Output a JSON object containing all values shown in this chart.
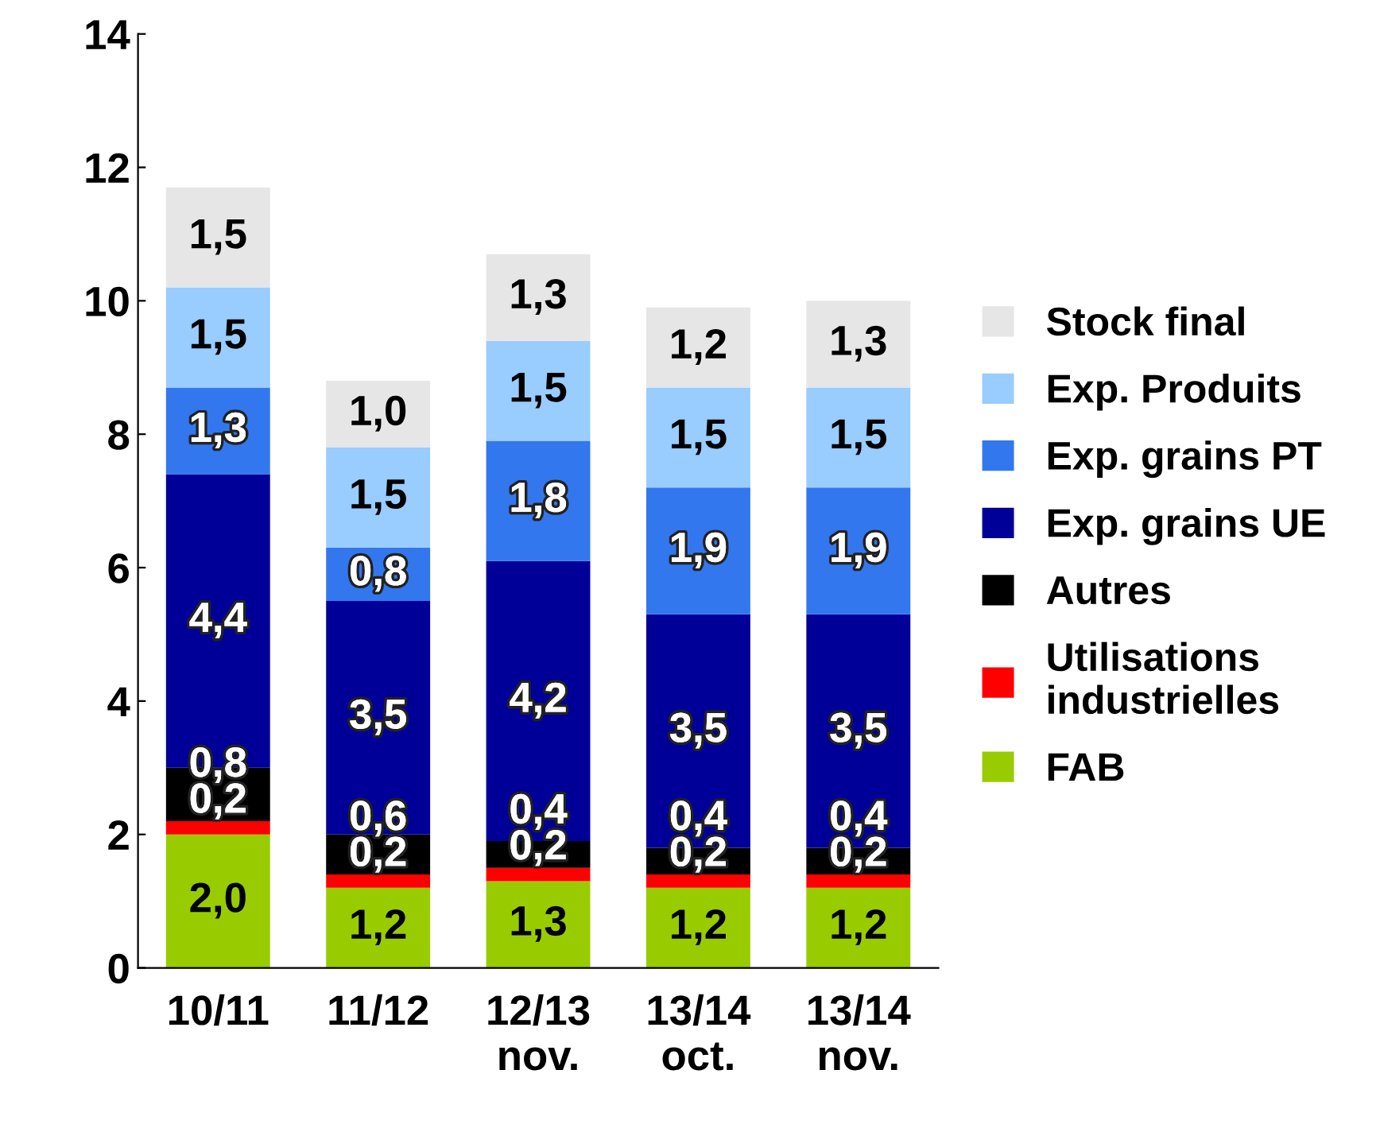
{
  "chart_data": {
    "type": "bar",
    "stacked": true,
    "categories": [
      "10/11",
      "11/12",
      "12/13\nnov.",
      "13/14\noct.",
      "13/14\nnov."
    ],
    "series": [
      {
        "name": "FAB",
        "color": "#99cc00",
        "values": [
          2.0,
          1.2,
          1.3,
          1.2,
          1.2
        ],
        "value_labels": [
          "2,0",
          "1,2",
          "1,3",
          "1,2",
          "1,2"
        ]
      },
      {
        "name": "Utilisations\nindustrielles",
        "color": "#ff0000",
        "values": [
          0.2,
          0.2,
          0.2,
          0.2,
          0.2
        ],
        "value_labels": [
          "0,2",
          "0,2",
          "0,2",
          "0,2",
          "0,2"
        ]
      },
      {
        "name": "Autres",
        "color": "#000000",
        "values": [
          0.8,
          0.6,
          0.4,
          0.4,
          0.4
        ],
        "value_labels": [
          "0,8",
          "0,6",
          "0,4",
          "0,4",
          "0,4"
        ]
      },
      {
        "name": "Exp. grains UE",
        "color": "#000099",
        "values": [
          4.4,
          3.5,
          4.2,
          3.5,
          3.5
        ],
        "value_labels": [
          "4,4",
          "3,5",
          "4,2",
          "3,5",
          "3,5"
        ]
      },
      {
        "name": "Exp. grains PT",
        "color": "#3377ee",
        "values": [
          1.3,
          0.8,
          1.8,
          1.9,
          1.9
        ],
        "value_labels": [
          "1,3",
          "0,8",
          "1,8",
          "1,9",
          "1,9"
        ]
      },
      {
        "name": "Exp. Produits",
        "color": "#99ccff",
        "values": [
          1.5,
          1.5,
          1.5,
          1.5,
          1.5
        ],
        "value_labels": [
          "1,5",
          "1,5",
          "1,5",
          "1,5",
          "1,5"
        ]
      },
      {
        "name": "Stock final",
        "color": "#e6e6e6",
        "values": [
          1.5,
          1.0,
          1.3,
          1.2,
          1.3
        ],
        "value_labels": [
          "1,5",
          "1,0",
          "1,3",
          "1,2",
          "1,3"
        ]
      }
    ],
    "ylim": [
      0,
      14
    ],
    "yticks": [
      0,
      2,
      4,
      6,
      8,
      10,
      12,
      14
    ],
    "legend": "right"
  }
}
